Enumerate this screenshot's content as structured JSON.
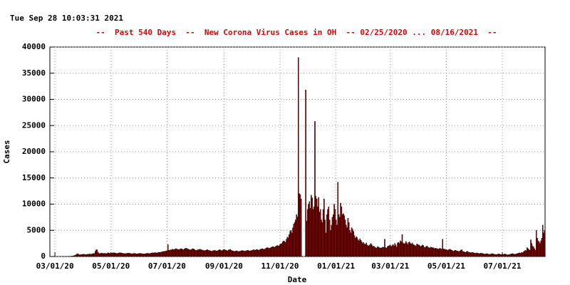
{
  "chart_data": {
    "type": "bar",
    "timestamp": "Tue Sep 28 10:03:31 2021",
    "title": "--  Past 540 Days  --  New Corona Virus Cases in OH  -- 02/25/2020 ... 08/16/2021  --",
    "xlabel": "Date",
    "ylabel": "Cases",
    "color": "#a00000",
    "edge_color": "#000000",
    "grid": true,
    "ylim": [
      0,
      40000
    ],
    "yticks": [
      0,
      5000,
      10000,
      15000,
      20000,
      25000,
      30000,
      35000,
      40000
    ],
    "categories": [
      null,
      null,
      null,
      null,
      null,
      "03/01/20",
      null,
      null,
      null,
      null,
      null,
      null,
      null,
      null,
      null,
      null,
      null,
      null,
      null,
      null,
      null,
      null,
      null,
      null,
      null,
      null,
      null,
      null,
      null,
      null,
      null,
      null,
      null,
      null,
      null,
      null,
      null,
      null,
      null,
      null,
      null,
      null,
      null,
      null,
      null,
      null,
      null,
      null,
      null,
      null,
      null,
      null,
      null,
      null,
      null,
      null,
      null,
      null,
      null,
      null,
      null,
      null,
      null,
      null,
      null,
      null,
      "05/01/20",
      null,
      null,
      null,
      null,
      null,
      null,
      null,
      null,
      null,
      null,
      null,
      null,
      null,
      null,
      null,
      null,
      null,
      null,
      null,
      null,
      null,
      null,
      null,
      null,
      null,
      null,
      null,
      null,
      null,
      null,
      null,
      null,
      null,
      null,
      null,
      null,
      null,
      null,
      null,
      null,
      null,
      null,
      null,
      null,
      null,
      null,
      null,
      null,
      null,
      null,
      null,
      null,
      null,
      null,
      null,
      null,
      null,
      null,
      null,
      null,
      "07/01/20",
      null,
      null,
      null,
      null,
      null,
      null,
      null,
      null,
      null,
      null,
      null,
      null,
      null,
      null,
      null,
      null,
      null,
      null,
      null,
      null,
      null,
      null,
      null,
      null,
      null,
      null,
      null,
      null,
      null,
      null,
      null,
      null,
      null,
      null,
      null,
      null,
      null,
      null,
      null,
      null,
      null,
      null,
      null,
      null,
      null,
      null,
      null,
      null,
      null,
      null,
      null,
      null,
      null,
      null,
      null,
      null,
      null,
      null,
      null,
      null,
      null,
      "09/01/20",
      null,
      null,
      null,
      null,
      null,
      null,
      null,
      null,
      null,
      null,
      null,
      null,
      null,
      null,
      null,
      null,
      null,
      null,
      null,
      null,
      null,
      null,
      null,
      null,
      null,
      null,
      null,
      null,
      null,
      null,
      null,
      null,
      null,
      null,
      null,
      null,
      null,
      null,
      null,
      null,
      null,
      null,
      null,
      null,
      null,
      null,
      null,
      null,
      null,
      null,
      null,
      null,
      null,
      null,
      null,
      null,
      null,
      null,
      null,
      null,
      "11/01/20",
      null,
      null,
      null,
      null,
      null,
      null,
      null,
      null,
      null,
      null,
      null,
      null,
      null,
      null,
      null,
      null,
      null,
      null,
      null,
      null,
      null,
      null,
      null,
      null,
      null,
      null,
      null,
      null,
      null,
      null,
      null,
      null,
      null,
      null,
      null,
      null,
      null,
      null,
      null,
      null,
      null,
      null,
      null,
      null,
      null,
      null,
      null,
      null,
      null,
      null,
      null,
      null,
      null,
      null,
      null,
      null,
      null,
      null,
      null,
      null,
      "01/01/21",
      null,
      null,
      null,
      null,
      null,
      null,
      null,
      null,
      null,
      null,
      null,
      null,
      null,
      null,
      null,
      null,
      null,
      null,
      null,
      null,
      null,
      null,
      null,
      null,
      null,
      null,
      null,
      null,
      null,
      null,
      null,
      null,
      null,
      null,
      null,
      null,
      null,
      null,
      null,
      null,
      null,
      null,
      null,
      null,
      null,
      null,
      null,
      null,
      null,
      null,
      null,
      null,
      null,
      null,
      null,
      null,
      null,
      null,
      "03/01/21",
      null,
      null,
      null,
      null,
      null,
      null,
      null,
      null,
      null,
      null,
      null,
      null,
      null,
      null,
      null,
      null,
      null,
      null,
      null,
      null,
      null,
      null,
      null,
      null,
      null,
      null,
      null,
      null,
      null,
      null,
      null,
      null,
      null,
      null,
      null,
      null,
      null,
      null,
      null,
      null,
      null,
      null,
      null,
      null,
      null,
      null,
      null,
      null,
      null,
      null,
      null,
      null,
      null,
      null,
      null,
      null,
      null,
      null,
      null,
      null,
      "05/01/21",
      null,
      null,
      null,
      null,
      null,
      null,
      null,
      null,
      null,
      null,
      null,
      null,
      null,
      null,
      null,
      null,
      null,
      null,
      null,
      null,
      null,
      null,
      null,
      null,
      null,
      null,
      null,
      null,
      null,
      null,
      null,
      null,
      null,
      null,
      null,
      null,
      null,
      null,
      null,
      null,
      null,
      null,
      null,
      null,
      null,
      null,
      null,
      null,
      null,
      null,
      null,
      null,
      null,
      null,
      null,
      null,
      null,
      null,
      null,
      null,
      "07/01/21",
      null,
      null,
      null,
      null,
      null,
      null,
      null,
      null,
      null,
      null,
      null,
      null,
      null,
      null,
      null,
      null,
      null,
      null,
      null,
      null,
      null,
      null,
      null,
      null,
      null,
      null,
      null,
      null,
      null,
      null,
      null,
      null,
      null,
      null,
      null,
      null,
      null,
      null,
      null,
      null,
      null,
      null,
      null,
      null,
      null,
      null
    ],
    "values": [
      0,
      0,
      0,
      0,
      0,
      0,
      0,
      0,
      0,
      0,
      0,
      0,
      0,
      0,
      0,
      3,
      5,
      10,
      13,
      22,
      26,
      37,
      50,
      67,
      88,
      119,
      169,
      247,
      351,
      442,
      564,
      400,
      300,
      350,
      410,
      380,
      450,
      420,
      370,
      390,
      410,
      450,
      430,
      500,
      410,
      480,
      520,
      600,
      560,
      1000,
      1300,
      1250,
      800,
      600,
      550,
      620,
      640,
      580,
      600,
      610,
      590,
      560,
      620,
      700,
      650,
      580,
      610,
      640,
      700,
      720,
      680,
      650,
      600,
      590,
      630,
      700,
      710,
      690,
      640,
      600,
      580,
      560,
      550,
      600,
      620,
      650,
      630,
      580,
      540,
      520,
      560,
      600,
      580,
      550,
      500,
      520,
      560,
      590,
      600,
      570,
      530,
      500,
      480,
      520,
      560,
      600,
      620,
      580,
      550,
      600,
      650,
      700,
      680,
      720,
      750,
      700,
      680,
      750,
      800,
      780,
      820,
      850,
      900,
      950,
      1000,
      980,
      1050,
      1100,
      2300,
      1200,
      1150,
      1300,
      1250,
      1400,
      1350,
      1300,
      1450,
      1500,
      1400,
      1350,
      1300,
      1400,
      1500,
      1450,
      1350,
      1300,
      1450,
      1550,
      1600,
      1500,
      1400,
      1350,
      1300,
      1250,
      1400,
      1500,
      1450,
      1300,
      1200,
      1150,
      1250,
      1300,
      1350,
      1400,
      1300,
      1250,
      1200,
      1150,
      1100,
      1200,
      1250,
      1300,
      1200,
      1150,
      1100,
      1050,
      1000,
      1100,
      1150,
      1200,
      1100,
      1050,
      1100,
      1200,
      1300,
      1250,
      1150,
      1100,
      1250,
      1350,
      1300,
      1200,
      1150,
      1100,
      1250,
      1300,
      1350,
      1200,
      1100,
      1050,
      1000,
      1000,
      1050,
      1100,
      1000,
      950,
      1000,
      1050,
      1100,
      1150,
      1100,
      1050,
      1000,
      1100,
      1150,
      1200,
      1100,
      1050,
      1100,
      1150,
      1200,
      1300,
      1250,
      1200,
      1300,
      1350,
      1250,
      1200,
      1300,
      1400,
      1450,
      1500,
      1400,
      1350,
      1500,
      1600,
      1700,
      1650,
      1550,
      1600,
      1700,
      1800,
      1900,
      1850,
      1750,
      1900,
      2000,
      2100,
      2050,
      2000,
      2300,
      2400,
      2500,
      2800,
      3000,
      2900,
      2700,
      3300,
      3700,
      3600,
      4200,
      4800,
      5000,
      4500,
      5500,
      6200,
      6500,
      7000,
      8000,
      7600,
      38000,
      12000,
      11800,
      11000,
      0,
      0,
      0,
      0,
      31800,
      6800,
      9000,
      10000,
      10500,
      9200,
      11700,
      11200,
      9000,
      9500,
      25800,
      11500,
      11000,
      9500,
      11300,
      8500,
      9000,
      7000,
      6500,
      9000,
      11000,
      7000,
      4500,
      8000,
      9000,
      9500,
      7000,
      5000,
      6000,
      7500,
      8000,
      10000,
      9000,
      7000,
      6000,
      14200,
      8000,
      7500,
      10200,
      9500,
      8000,
      8200,
      7800,
      7000,
      6000,
      5500,
      7300,
      6500,
      5000,
      4500,
      5500,
      5200,
      4800,
      4000,
      3500,
      3800,
      3600,
      3200,
      3000,
      3400,
      3100,
      2800,
      2500,
      2700,
      2400,
      2300,
      2600,
      2200,
      2000,
      2100,
      2300,
      2500,
      2200,
      1900,
      2000,
      1800,
      1700,
      1600,
      1900,
      1800,
      1700,
      1650,
      1600,
      1700,
      1800,
      1750,
      3300,
      1700,
      1600,
      1900,
      2000,
      2100,
      2200,
      1900,
      2100,
      2300,
      2000,
      2500,
      2200,
      1800,
      2600,
      2700,
      2500,
      3000,
      2800,
      4200,
      2600,
      2400,
      2500,
      2900,
      2600,
      2300,
      2700,
      2800,
      2500,
      2400,
      2600,
      2300,
      2200,
      2100,
      2000,
      2400,
      2300,
      2200,
      2100,
      1900,
      2000,
      2200,
      2100,
      1800,
      1700,
      1900,
      2000,
      1800,
      1700,
      1600,
      1800,
      1750,
      1650,
      1700,
      1500,
      1600,
      1550,
      1500,
      1450,
      1400,
      1600,
      1500,
      1400,
      3300,
      1450,
      1400,
      1350,
      1300,
      1250,
      1200,
      1350,
      1400,
      1300,
      1200,
      1100,
      1000,
      1150,
      1200,
      1100,
      1050,
      1000,
      950,
      1100,
      1200,
      1300,
      1000,
      900,
      850,
      800,
      900,
      1000,
      850,
      800,
      750,
      700,
      800,
      750,
      700,
      650,
      600,
      700,
      650,
      600,
      550,
      600,
      650,
      600,
      550,
      500,
      450,
      500,
      550,
      500,
      450,
      400,
      450,
      500,
      550,
      500,
      450,
      400,
      350,
      400,
      450,
      500,
      450,
      400,
      380,
      350,
      400,
      450,
      500,
      400,
      350,
      300,
      350,
      400,
      450,
      500,
      550,
      500,
      450,
      400,
      500,
      550,
      600,
      650,
      700,
      600,
      800,
      700,
      900,
      1000,
      1200,
      1100,
      1700,
      1500,
      1300,
      1200,
      3200,
      2500,
      2000,
      1800,
      1500,
      1200,
      5000,
      3500,
      3000,
      2800,
      2500,
      3000,
      3500,
      6000,
      4500,
      5000
    ]
  }
}
